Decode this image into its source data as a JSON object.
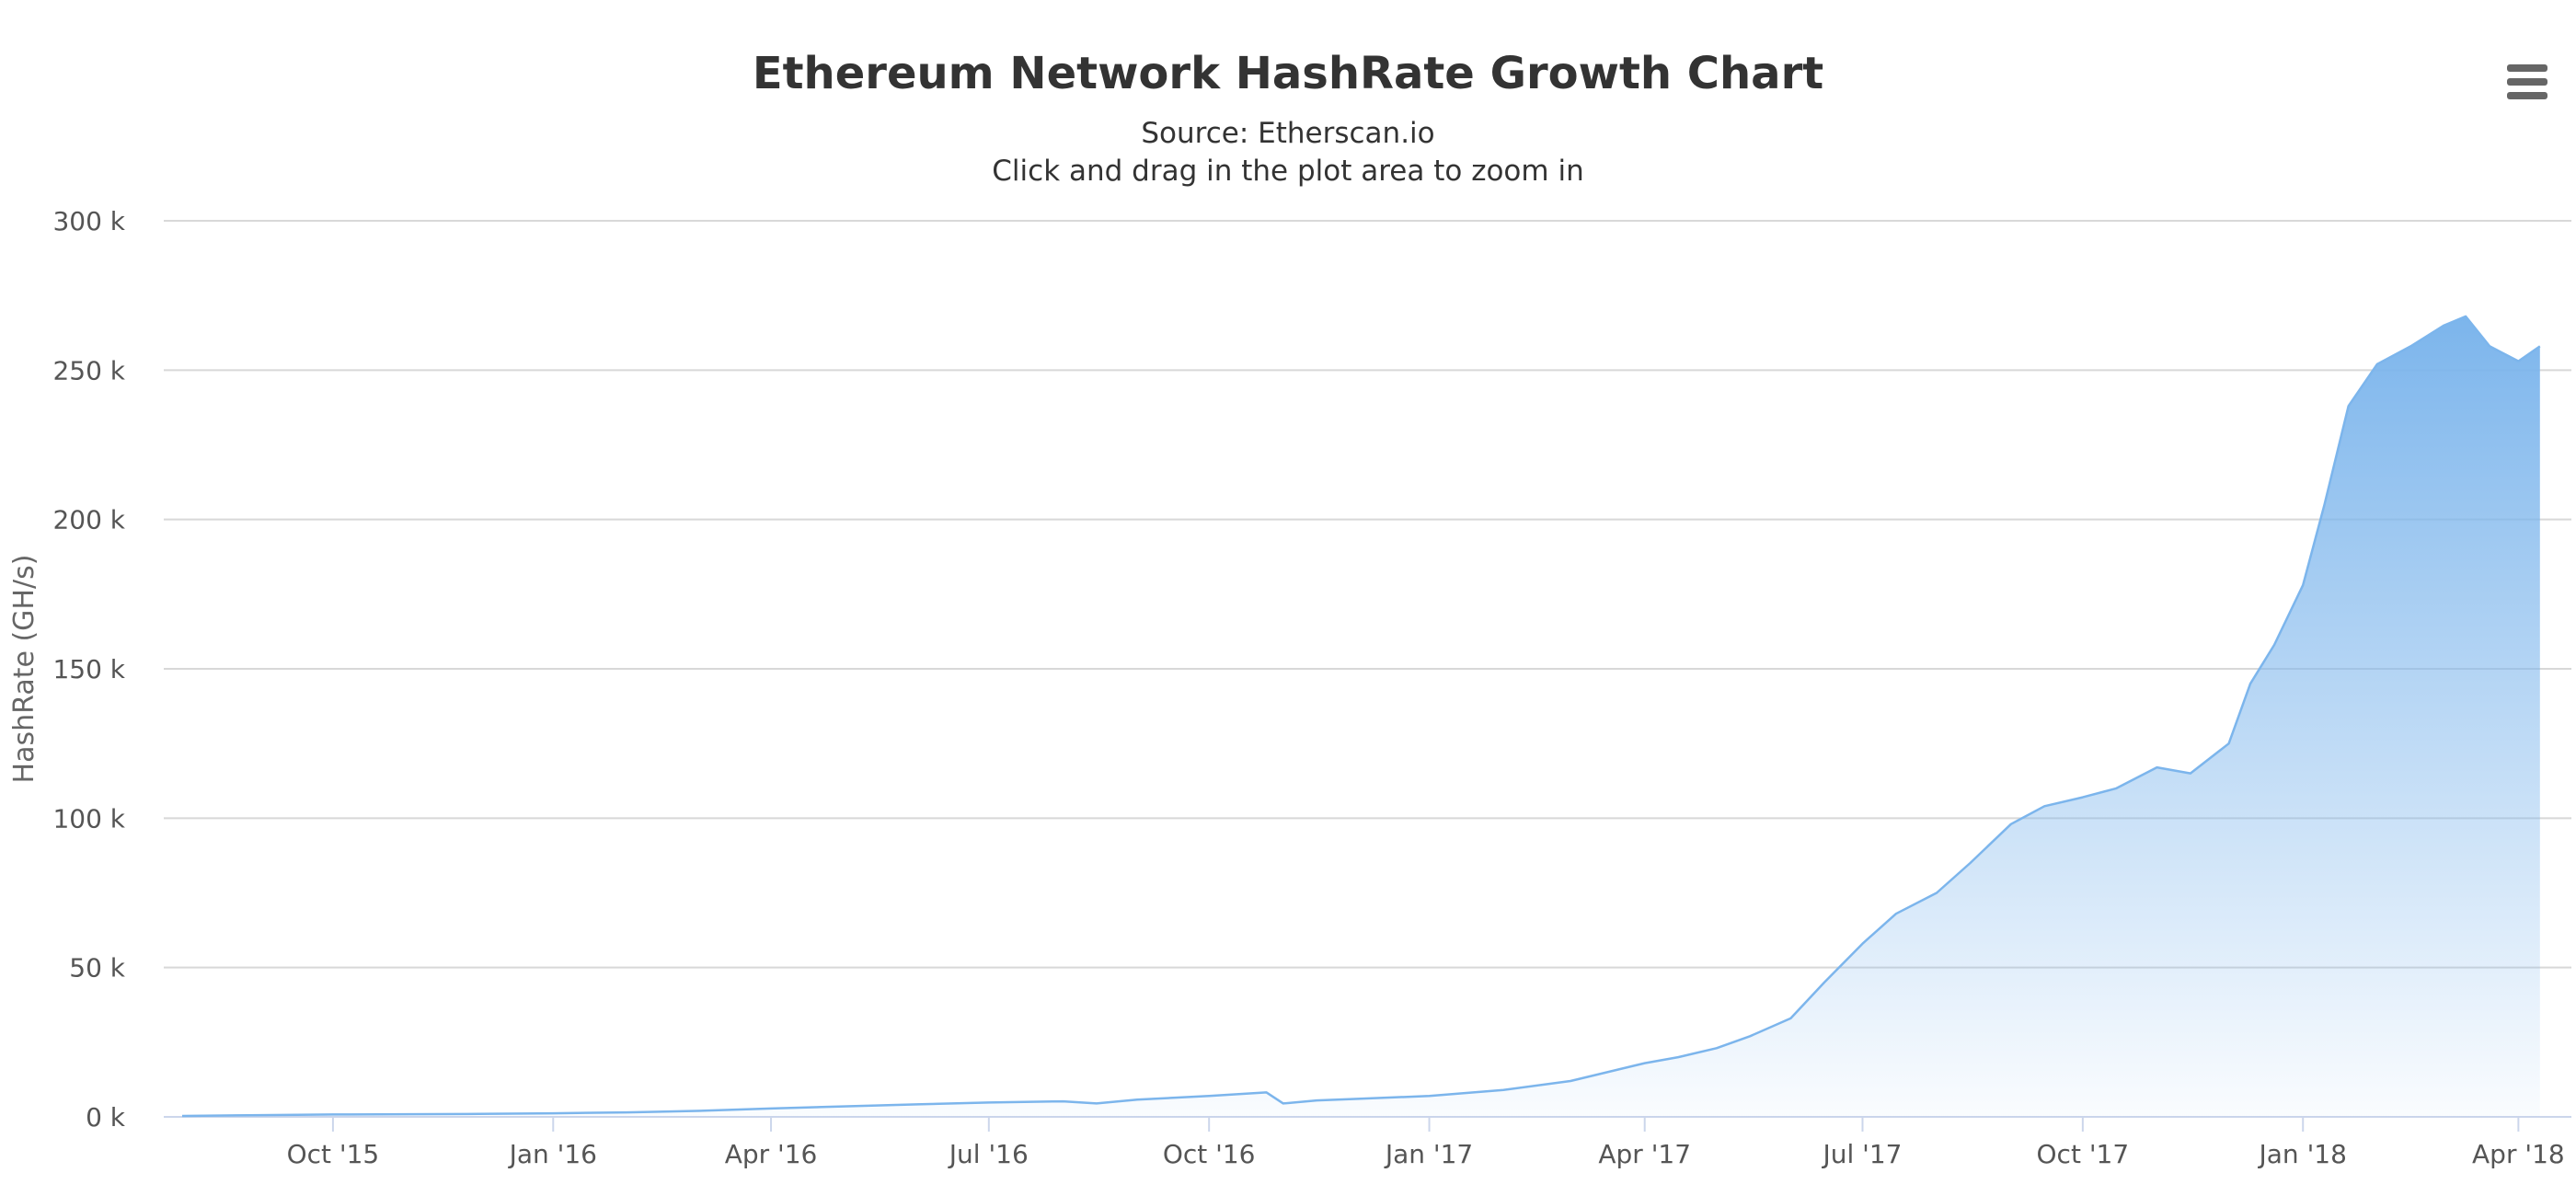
{
  "chart_data": {
    "type": "area",
    "title": "Ethereum Network HashRate Growth Chart",
    "subtitle": "Source: Etherscan.io",
    "subtitle2": "Click and drag in the plot area to zoom in",
    "xlabel": "",
    "ylabel": "HashRate (GH/s)",
    "ylim": [
      0,
      300000
    ],
    "xlim": [
      "2015-07-30",
      "2018-04-12"
    ],
    "y_ticks": [
      0,
      50000,
      100000,
      150000,
      200000,
      250000,
      300000
    ],
    "y_tick_labels": [
      "0 k",
      "50 k",
      "100 k",
      "150 k",
      "200 k",
      "250 k",
      "300 k"
    ],
    "x_ticks": [
      "2015-10-01",
      "2016-01-01",
      "2016-04-01",
      "2016-07-01",
      "2016-10-01",
      "2017-01-01",
      "2017-04-01",
      "2017-07-01",
      "2017-10-01",
      "2018-01-01",
      "2018-04-01"
    ],
    "x_tick_labels": [
      "Oct '15",
      "Jan '16",
      "Apr '16",
      "Jul '16",
      "Oct '16",
      "Jan '17",
      "Apr '17",
      "Jul '17",
      "Oct '17",
      "Jan '18",
      "Apr '18"
    ],
    "grid": true,
    "legend": "none",
    "series": [
      {
        "color": "#7cb5ec",
        "x": [
          "2015-07-30",
          "2015-09-01",
          "2015-10-01",
          "2015-11-01",
          "2015-12-01",
          "2016-01-01",
          "2016-02-01",
          "2016-03-01",
          "2016-04-01",
          "2016-05-01",
          "2016-06-01",
          "2016-07-01",
          "2016-08-01",
          "2016-08-15",
          "2016-09-01",
          "2016-10-01",
          "2016-10-25",
          "2016-11-01",
          "2016-11-15",
          "2016-12-01",
          "2017-01-01",
          "2017-02-01",
          "2017-03-01",
          "2017-04-01",
          "2017-04-15",
          "2017-05-01",
          "2017-05-15",
          "2017-06-01",
          "2017-06-15",
          "2017-07-01",
          "2017-07-15",
          "2017-08-01",
          "2017-08-15",
          "2017-09-01",
          "2017-09-15",
          "2017-10-01",
          "2017-10-15",
          "2017-11-01",
          "2017-11-15",
          "2017-12-01",
          "2017-12-10",
          "2017-12-20",
          "2018-01-01",
          "2018-01-10",
          "2018-01-20",
          "2018-02-01",
          "2018-02-15",
          "2018-03-01",
          "2018-03-10",
          "2018-03-20",
          "2018-04-01",
          "2018-04-10"
        ],
        "y": [
          300,
          600,
          800,
          900,
          1000,
          1200,
          1500,
          2000,
          2800,
          3500,
          4200,
          4800,
          5200,
          4500,
          5800,
          7000,
          8200,
          4500,
          5500,
          6000,
          7000,
          9000,
          12000,
          18000,
          20000,
          23000,
          27000,
          33000,
          45000,
          58000,
          68000,
          75000,
          85000,
          98000,
          104000,
          107000,
          110000,
          117000,
          115000,
          125000,
          145000,
          158000,
          178000,
          205000,
          238000,
          252000,
          258000,
          265000,
          268000,
          258000,
          253000,
          258000
        ]
      }
    ]
  }
}
